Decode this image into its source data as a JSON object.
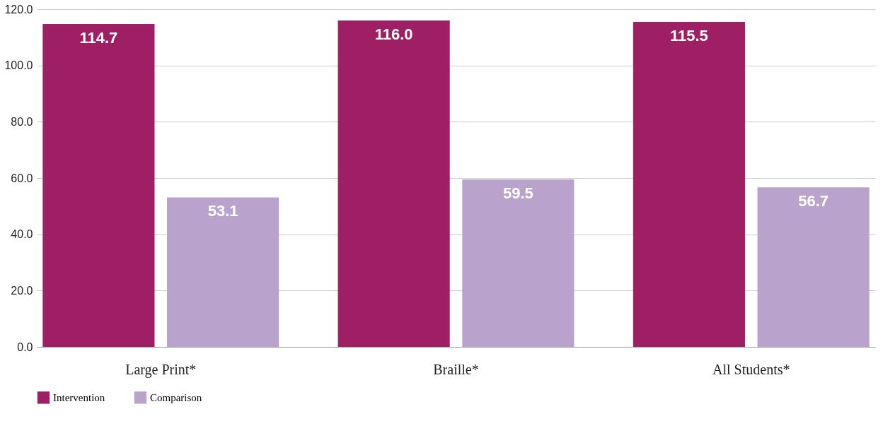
{
  "chart_data": {
    "type": "bar",
    "categories": [
      "Large Print*",
      "Braille*",
      "All Students*"
    ],
    "series": [
      {
        "name": "Intervention",
        "color": "#9e1f63",
        "values": [
          114.7,
          116.0,
          115.5
        ],
        "value_labels": [
          "114.7",
          "116.0",
          "115.5"
        ]
      },
      {
        "name": "Comparison",
        "color": "#b9a3cd",
        "values": [
          53.1,
          59.5,
          56.7
        ],
        "value_labels": [
          "53.1",
          "59.5",
          "56.7"
        ]
      }
    ],
    "ylim": [
      0,
      120
    ],
    "yticks": [
      {
        "value": 0,
        "label": "0.0"
      },
      {
        "value": 20,
        "label": "20.0"
      },
      {
        "value": 40,
        "label": "40.0"
      },
      {
        "value": 60,
        "label": "60.0"
      },
      {
        "value": 80,
        "label": "80.0"
      },
      {
        "value": 100,
        "label": "100.0"
      },
      {
        "value": 120,
        "label": "120.0"
      }
    ],
    "grid": "y",
    "legend": "bottom left"
  }
}
